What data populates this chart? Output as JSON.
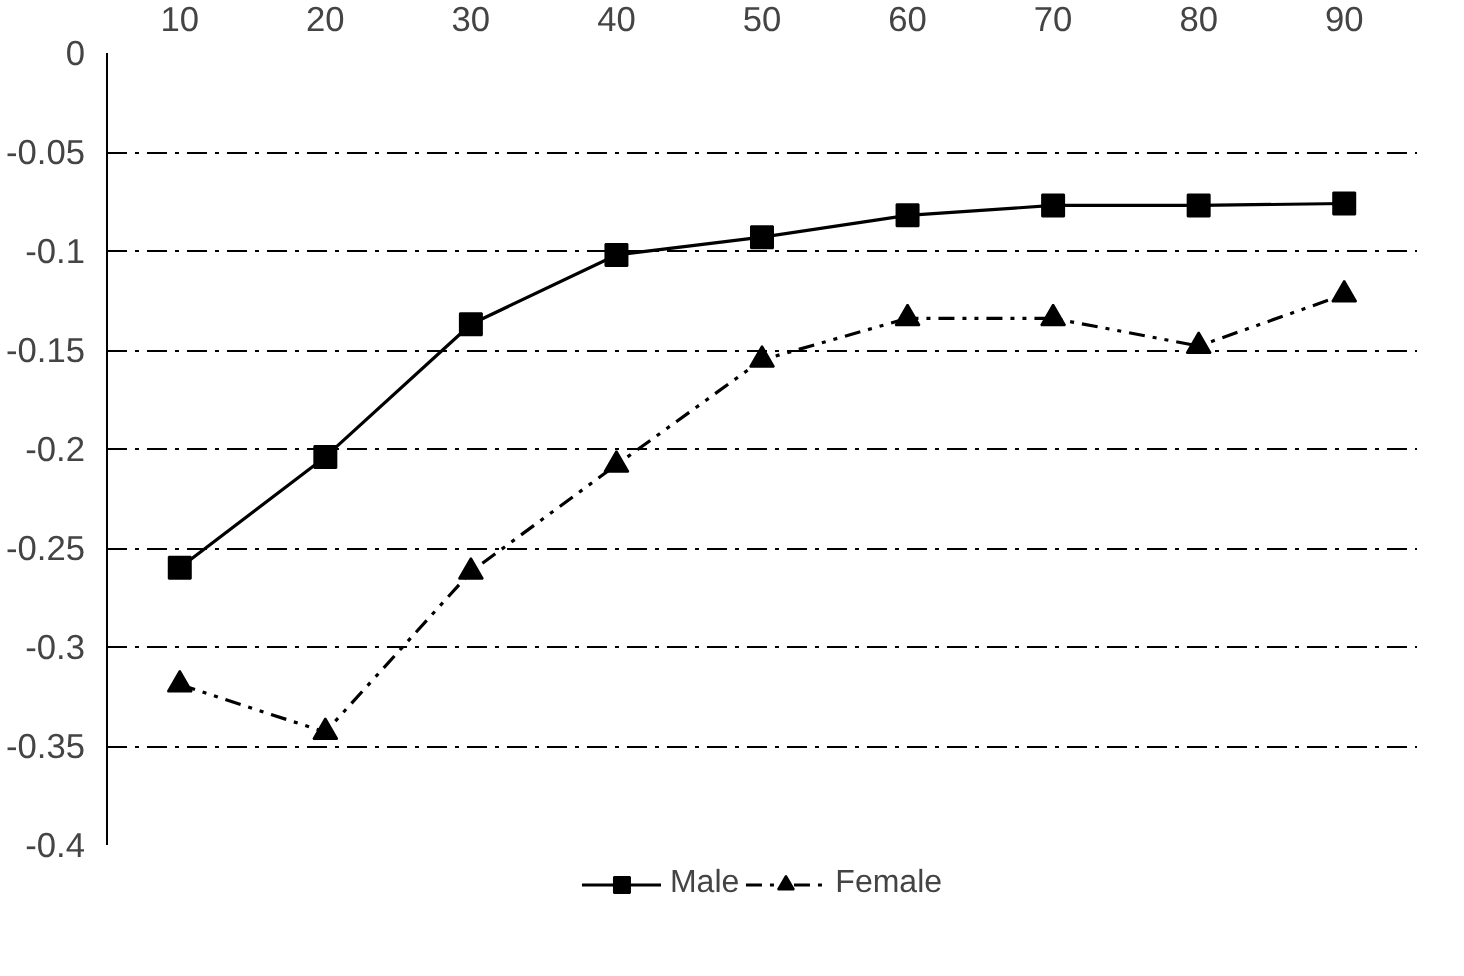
{
  "chart_data": {
    "type": "line",
    "categories": [
      "10",
      "20",
      "30",
      "40",
      "50",
      "60",
      "70",
      "80",
      "90"
    ],
    "ylim": [
      -0.4,
      0
    ],
    "yticks": [
      {
        "value": -0.4,
        "label": "-0.4"
      },
      {
        "value": -0.35,
        "label": "-0.35"
      },
      {
        "value": -0.3,
        "label": "-0.3"
      },
      {
        "value": -0.25,
        "label": "-0.25"
      },
      {
        "value": -0.2,
        "label": "-0.2"
      },
      {
        "value": -0.15,
        "label": "-0.15"
      },
      {
        "value": -0.1,
        "label": "-0.1"
      },
      {
        "value": -0.05,
        "label": "-0.05"
      },
      {
        "value": 0,
        "label": "0"
      }
    ],
    "grid": "y",
    "legend": "bottom",
    "series": [
      {
        "name": "Male",
        "color": "#000000",
        "marker": "square",
        "line_style": "solid",
        "values": [
          -0.26,
          -0.204,
          -0.137,
          -0.102,
          -0.093,
          -0.082,
          -0.077,
          -0.077,
          -0.076
        ]
      },
      {
        "name": "Female",
        "color": "#000000",
        "marker": "triangle",
        "line_style": "dashed",
        "values": [
          -0.319,
          -0.343,
          -0.262,
          -0.208,
          -0.155,
          -0.134,
          -0.134,
          -0.148,
          -0.122
        ]
      }
    ]
  }
}
